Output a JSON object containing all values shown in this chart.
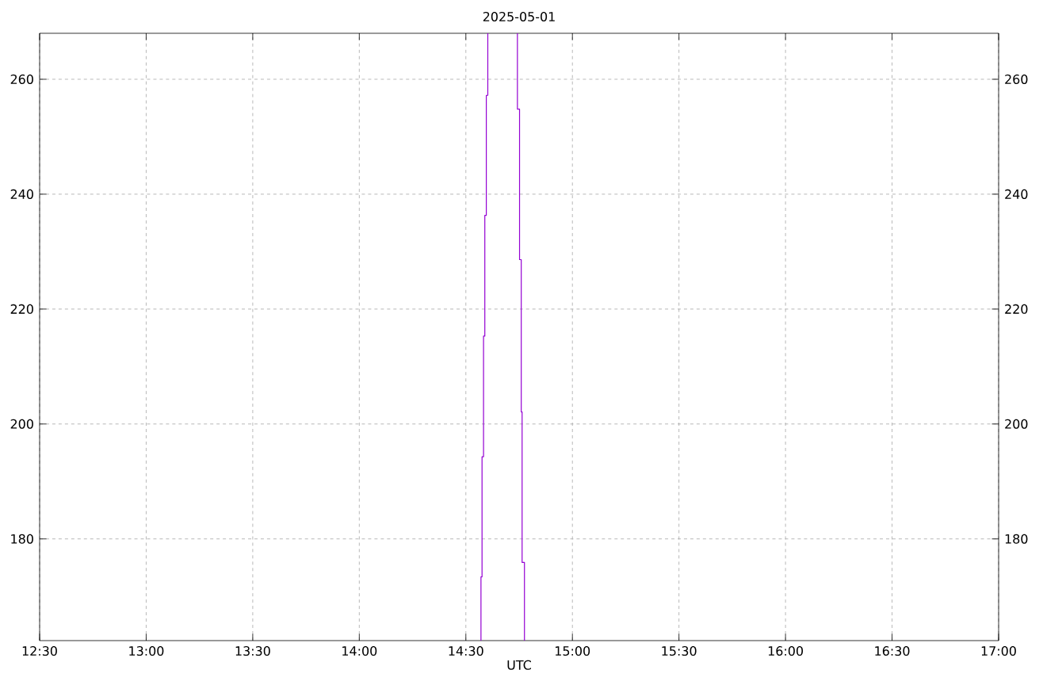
{
  "chart_data": {
    "type": "line",
    "title": "2025-05-01",
    "xlabel": "UTC",
    "series": [
      {
        "color": "#9400d3",
        "x": [
          14.571,
          14.571,
          14.576,
          14.576,
          14.583,
          14.583,
          14.589,
          14.589,
          14.596,
          14.596,
          14.603,
          14.603
        ],
        "values": [
          162.3,
          173.4,
          173.4,
          194.3,
          194.3,
          215.3,
          215.3,
          236.3,
          236.3,
          257.2,
          257.2,
          268.0
        ]
      },
      {
        "color": "#9400d3",
        "x": [
          14.742,
          14.742,
          14.752,
          14.752,
          14.76,
          14.76,
          14.764,
          14.764,
          14.775,
          14.775
        ],
        "values": [
          268.0,
          254.8,
          254.8,
          228.6,
          228.6,
          202.1,
          202.1,
          175.9,
          175.9,
          162.3
        ]
      }
    ],
    "xlim": [
      12.5,
      17
    ],
    "xticks": [
      {
        "value": 12.5,
        "label": "12:30"
      },
      {
        "value": 13,
        "label": "13:00"
      },
      {
        "value": 13.5,
        "label": "13:30"
      },
      {
        "value": 14,
        "label": "14:00"
      },
      {
        "value": 14.5,
        "label": "14:30"
      },
      {
        "value": 15,
        "label": "15:00"
      },
      {
        "value": 15.5,
        "label": "15:30"
      },
      {
        "value": 16,
        "label": "16:00"
      },
      {
        "value": 16.5,
        "label": "16:30"
      },
      {
        "value": 17,
        "label": "17:00"
      }
    ],
    "ylim": [
      162.3,
      268
    ],
    "yticks": [
      180,
      200,
      220,
      240,
      260
    ],
    "y2lim": [
      162.3,
      268
    ],
    "y2ticks": [
      180,
      200,
      220,
      240,
      260
    ],
    "grid": true,
    "marker": "none",
    "line_style": "solid"
  }
}
